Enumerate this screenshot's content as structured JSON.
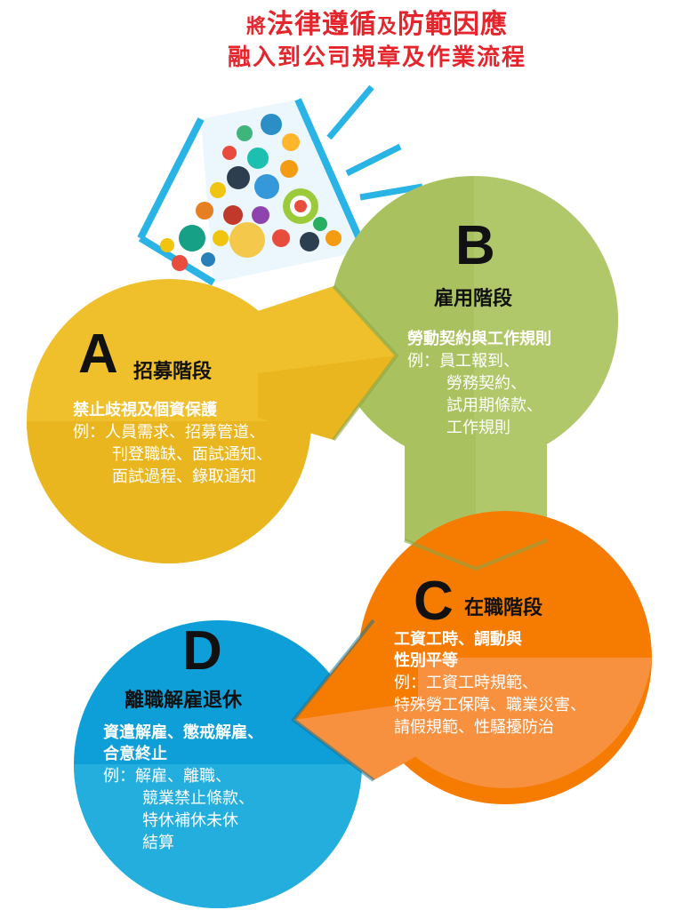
{
  "title": {
    "line1_p1": "將",
    "line1_p2": "法律遵循",
    "line1_p3": "及",
    "line1_p4": "防範因應",
    "line2": "融入到公司規章及作業流程"
  },
  "stages": {
    "a": {
      "letter": "A",
      "name": "招募階段",
      "heading": "禁止歧視及個資保護",
      "lines": [
        "例：人員需求、招募管道、",
        "刊登職缺、面試通知、",
        "面試過程、錄取通知"
      ]
    },
    "b": {
      "letter": "B",
      "name": "雇用階段",
      "heading": "勞動契約與工作規則",
      "lines": [
        "例：員工報到、",
        "勞務契約、",
        "試用期條款、",
        "工作規則"
      ]
    },
    "c": {
      "letter": "C",
      "name": "在職階段",
      "heading1": "工資工時、調動與",
      "heading2": "性別平等",
      "lines": [
        "例：工資工時規範、",
        "特殊勞工保障、職業災害、",
        "請假規範、性騷擾防治"
      ]
    },
    "d": {
      "letter": "D",
      "name": "離職解雇退休",
      "heading1": "資遣解雇、懲戒解雇、",
      "heading2": "合意終止",
      "lines": [
        "例：解雇、離職、",
        "競業禁止條款、",
        "特休補休未休",
        "結算"
      ]
    }
  },
  "colors": {
    "title": "#e4262c",
    "a": "#f0c02c",
    "b": "#a9c25f",
    "c": "#f5883d",
    "d": "#2aa7d4",
    "megaphone": "#25b2e4"
  }
}
